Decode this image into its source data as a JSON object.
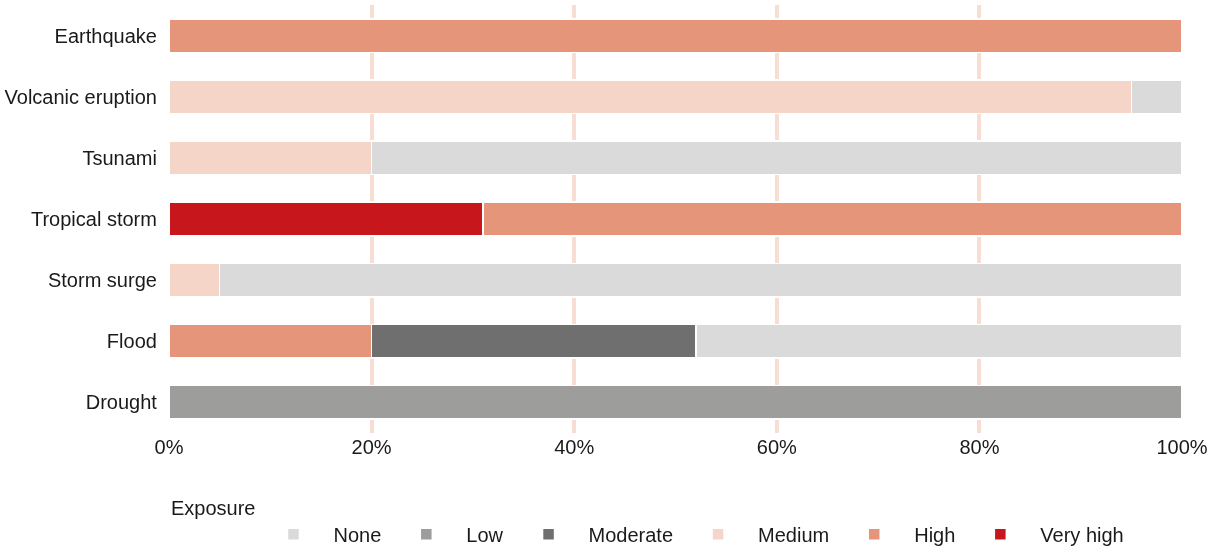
{
  "chart_data": {
    "type": "bar",
    "orientation": "horizontal",
    "stacked": true,
    "categories": [
      "Earthquake",
      "Volcanic eruption",
      "Tsunami",
      "Tropical storm",
      "Storm surge",
      "Flood",
      "Drought"
    ],
    "series": [
      {
        "name": "Very high",
        "color": "#c8161d",
        "values": [
          null,
          null,
          null,
          31,
          null,
          null,
          null
        ]
      },
      {
        "name": "High",
        "color": "#e5957a",
        "values": [
          100,
          null,
          null,
          69,
          null,
          20,
          null
        ]
      },
      {
        "name": "Medium",
        "color": "#f5d5c8",
        "values": [
          null,
          95,
          20,
          null,
          5,
          null,
          null
        ]
      },
      {
        "name": "Moderate",
        "color": "#6f6f6f",
        "values": [
          null,
          null,
          null,
          null,
          null,
          32,
          null
        ]
      },
      {
        "name": "Low",
        "color": "#9d9d9c",
        "values": [
          null,
          null,
          null,
          null,
          null,
          null,
          100
        ]
      },
      {
        "name": "None",
        "color": "#dadada",
        "values": [
          null,
          5,
          80,
          null,
          95,
          48,
          null
        ]
      }
    ],
    "xlim": [
      0,
      100
    ],
    "xticks": [
      {
        "value": 0,
        "label": "0%"
      },
      {
        "value": 20,
        "label": "20%"
      },
      {
        "value": 40,
        "label": "40%"
      },
      {
        "value": 60,
        "label": "60%"
      },
      {
        "value": 80,
        "label": "80%"
      },
      {
        "value": 100,
        "label": "100%"
      }
    ],
    "grid": "x",
    "legend": "bottom",
    "legend_title": "Exposure"
  }
}
